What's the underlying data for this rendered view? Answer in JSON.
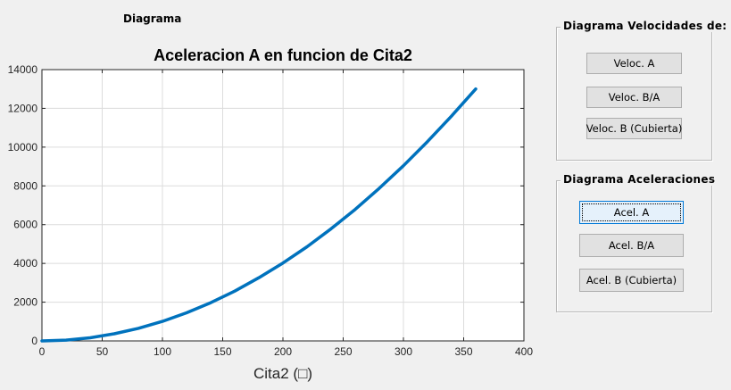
{
  "top_label": "Diagrama",
  "velocidades": {
    "title": "Diagrama Velocidades de:",
    "buttons": [
      "Veloc. A",
      "Veloc. B/A",
      "Veloc. B (Cubierta)"
    ]
  },
  "aceleraciones": {
    "title": "Diagrama Aceleraciones",
    "buttons": [
      "Acel. A",
      "Acel. B/A",
      "Acel. B (Cubierta)"
    ]
  },
  "chart_data": {
    "type": "line",
    "title": "Aceleracion A en funcion de Cita2",
    "xlabel": "Cita2 (□)",
    "ylabel": "",
    "xlim": [
      0,
      400
    ],
    "ylim": [
      0,
      14000
    ],
    "xticks": [
      0,
      50,
      100,
      150,
      200,
      250,
      300,
      350,
      400
    ],
    "yticks": [
      0,
      2000,
      4000,
      6000,
      8000,
      10000,
      12000,
      14000
    ],
    "grid": true,
    "line_color": "#0072bd",
    "series": [
      {
        "x": [
          0,
          20,
          40,
          60,
          80,
          100,
          120,
          140,
          160,
          180,
          200,
          220,
          240,
          260,
          280,
          300,
          320,
          340,
          360
        ],
        "values": [
          0,
          40,
          160,
          370,
          650,
          1010,
          1450,
          1970,
          2570,
          3260,
          4020,
          4860,
          5790,
          6790,
          7880,
          9040,
          10290,
          11610,
          13000
        ]
      }
    ]
  }
}
